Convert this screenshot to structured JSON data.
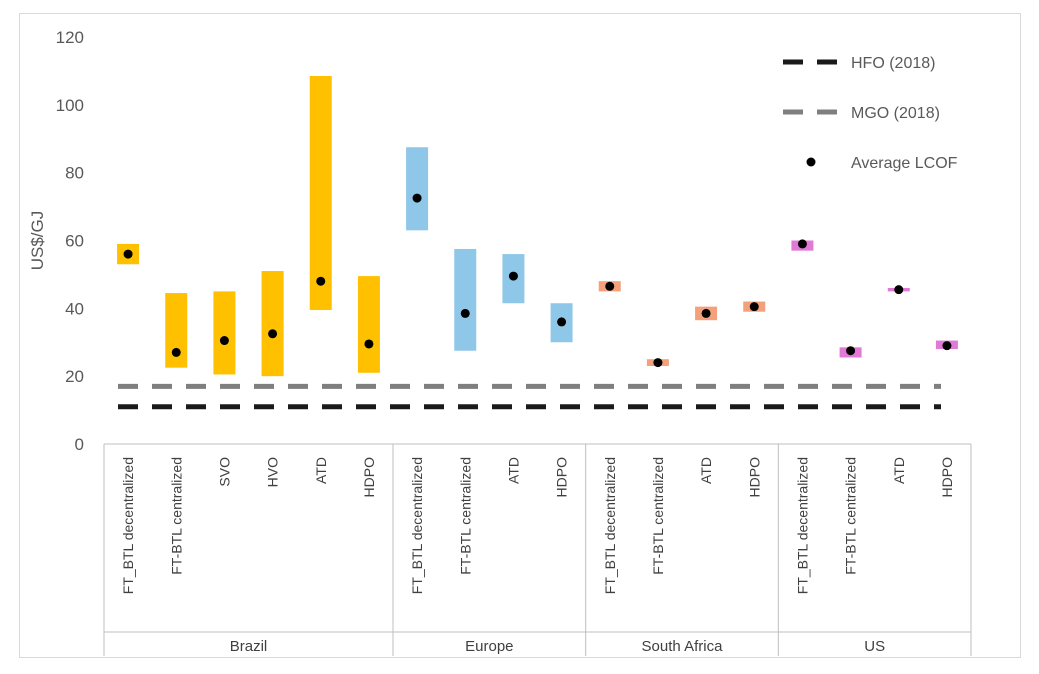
{
  "chart_data": {
    "type": "floating-bar-range",
    "title": "",
    "ylabel": "US$/GJ",
    "xlabel": "",
    "ylim": [
      0,
      120
    ],
    "yticks": [
      0,
      20,
      40,
      60,
      80,
      100,
      120
    ],
    "reference_lines": [
      {
        "name": "HFO (2018)",
        "value": 11,
        "color": "#1a1a1a"
      },
      {
        "name": "MGO (2018)",
        "value": 17,
        "color": "#7f7f7f"
      }
    ],
    "average_series_name": "Average LCOF",
    "groups": [
      {
        "name": "Brazil",
        "color": "#ffc000",
        "items": [
          {
            "label": "FT_BTL decentralized",
            "min": 53,
            "max": 59,
            "avg": 56
          },
          {
            "label": "FT-BTL centralized",
            "min": 22.5,
            "max": 44.5,
            "avg": 27
          },
          {
            "label": "SVO",
            "min": 20.5,
            "max": 45,
            "avg": 30.5
          },
          {
            "label": "HVO",
            "min": 20,
            "max": 51,
            "avg": 32.5
          },
          {
            "label": "ATD",
            "min": 39.5,
            "max": 108.5,
            "avg": 48
          },
          {
            "label": "HDPO",
            "min": 21,
            "max": 49.5,
            "avg": 29.5
          }
        ]
      },
      {
        "name": "Europe",
        "color": "#8fc7e8",
        "items": [
          {
            "label": "FT_BTL decentralized",
            "min": 63,
            "max": 87.5,
            "avg": 72.5
          },
          {
            "label": "FT-BTL centralized",
            "min": 27.5,
            "max": 57.5,
            "avg": 38.5
          },
          {
            "label": "ATD",
            "min": 41.5,
            "max": 56,
            "avg": 49.5
          },
          {
            "label": "HDPO",
            "min": 30,
            "max": 41.5,
            "avg": 36
          }
        ]
      },
      {
        "name": "South Africa",
        "color": "#f4a07a",
        "items": [
          {
            "label": "FT_BTL decentralized",
            "min": 45,
            "max": 48,
            "avg": 46.5
          },
          {
            "label": "FT-BTL centralized",
            "min": 23,
            "max": 25,
            "avg": 24
          },
          {
            "label": "ATD",
            "min": 36.5,
            "max": 40.5,
            "avg": 38.5
          },
          {
            "label": "HDPO",
            "min": 39,
            "max": 42,
            "avg": 40.5
          }
        ]
      },
      {
        "name": "US",
        "color": "#e07ad6",
        "items": [
          {
            "label": "FT_BTL decentralized",
            "min": 57,
            "max": 60,
            "avg": 59
          },
          {
            "label": "FT-BTL centralized",
            "min": 25.5,
            "max": 28.5,
            "avg": 27.5
          },
          {
            "label": "ATD",
            "min": 45,
            "max": 46,
            "avg": 45.5
          },
          {
            "label": "HDPO",
            "min": 28,
            "max": 30.5,
            "avg": 29
          }
        ]
      }
    ]
  }
}
